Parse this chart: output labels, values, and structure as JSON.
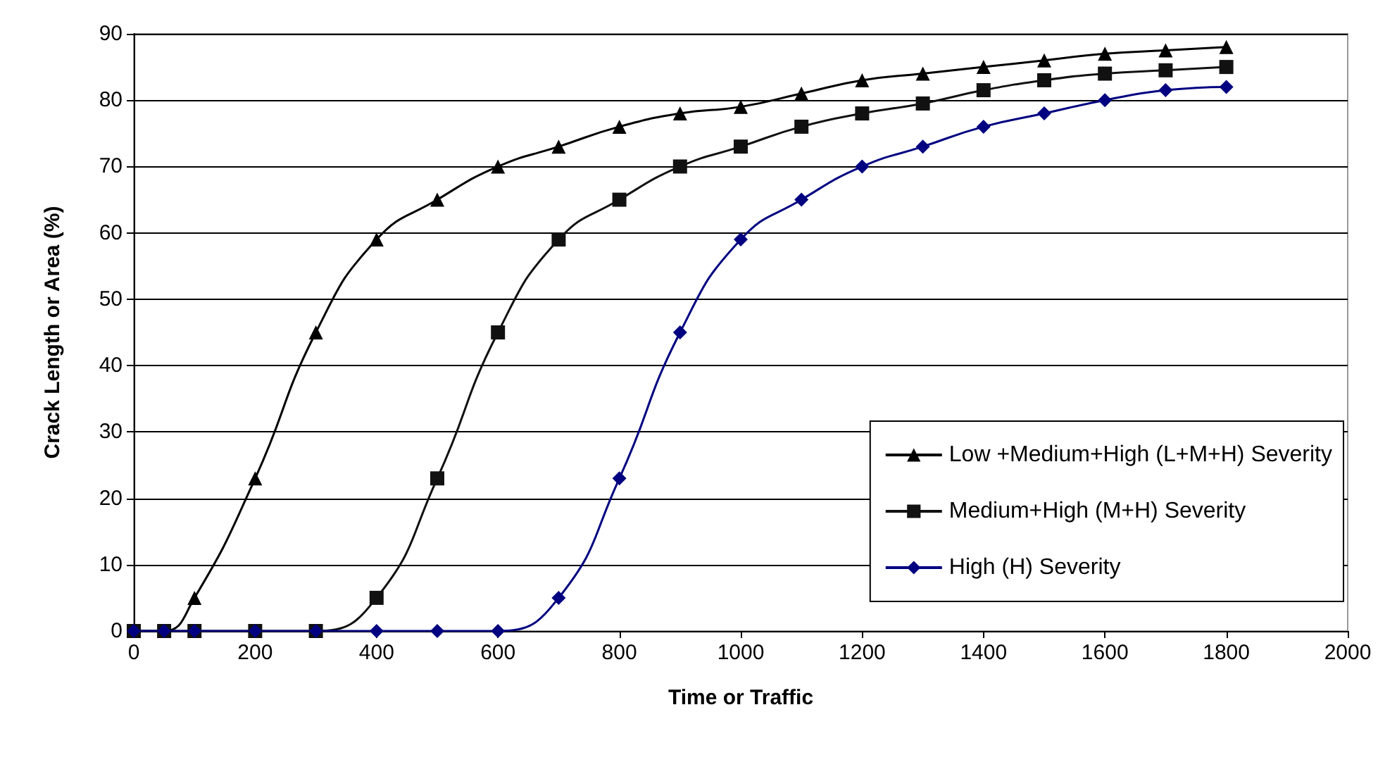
{
  "chart_data": {
    "type": "line",
    "xlabel": "Time or Traffic",
    "ylabel": "Crack Length or Area (%)",
    "xlim": [
      0,
      2000
    ],
    "xticks": [
      0,
      200,
      400,
      600,
      800,
      1000,
      1200,
      1400,
      1600,
      1800,
      2000
    ],
    "ylim": [
      0,
      90
    ],
    "yticks": [
      0,
      10,
      20,
      30,
      40,
      50,
      60,
      70,
      80,
      90
    ],
    "grid": "y",
    "legend": "bottom right",
    "line_style": "solid",
    "x": [
      0,
      50,
      100,
      200,
      300,
      400,
      500,
      600,
      700,
      800,
      900,
      1000,
      1100,
      1200,
      1300,
      1400,
      1500,
      1600,
      1700,
      1800
    ],
    "series": [
      {
        "name": "Low +Medium+High (L+M+H) Severity",
        "color": "#000000",
        "marker": "triangle",
        "values": [
          0,
          0,
          5,
          23,
          45,
          59,
          65,
          70,
          73,
          76,
          78,
          79,
          81,
          83,
          84,
          85,
          86,
          87,
          87.5,
          88
        ]
      },
      {
        "name": "Medium+High (M+H) Severity",
        "color": "#111111",
        "marker": "square",
        "values": [
          0,
          0,
          0,
          0,
          0,
          5,
          23,
          45,
          59,
          65,
          70,
          73,
          76,
          78,
          79.5,
          81.5,
          83,
          84,
          84.5,
          85
        ]
      },
      {
        "name": "High (H) Severity",
        "color": "#000080",
        "marker": "diamond",
        "values": [
          0,
          0,
          0,
          0,
          0,
          0,
          0,
          0,
          5,
          23,
          45,
          59,
          65,
          70,
          73,
          76,
          78,
          80,
          81.5,
          82
        ]
      }
    ]
  }
}
